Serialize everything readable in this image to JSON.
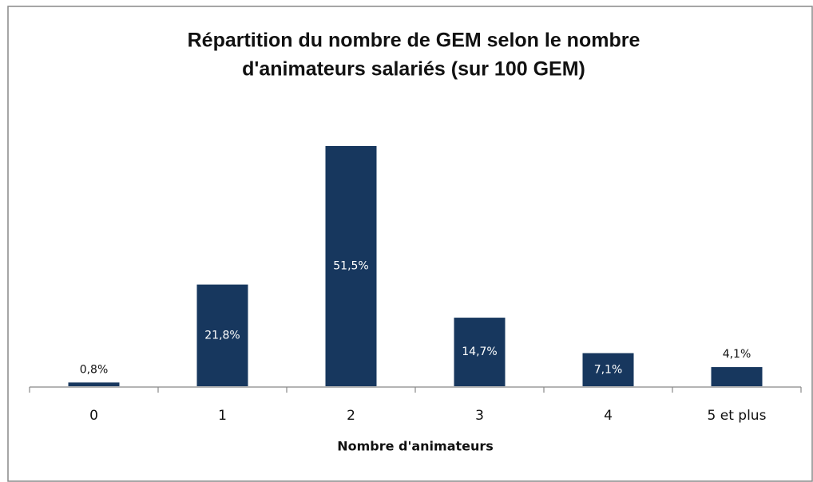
{
  "chart_data": {
    "type": "bar",
    "title": [
      "Répartition du nombre de GEM selon le nombre",
      "d'animateurs salariés (sur 100 GEM)"
    ],
    "x_label": "Nombre d'animateurs",
    "categories": [
      "0",
      "1",
      "2",
      "3",
      "4",
      "5 et plus"
    ],
    "values": [
      0.8,
      21.8,
      51.5,
      14.7,
      7.1,
      4.1
    ],
    "value_labels": [
      "0,8%",
      "21,8%",
      "51,5%",
      "14,7%",
      "7,1%",
      "4,1%"
    ],
    "color": "#17375e"
  }
}
